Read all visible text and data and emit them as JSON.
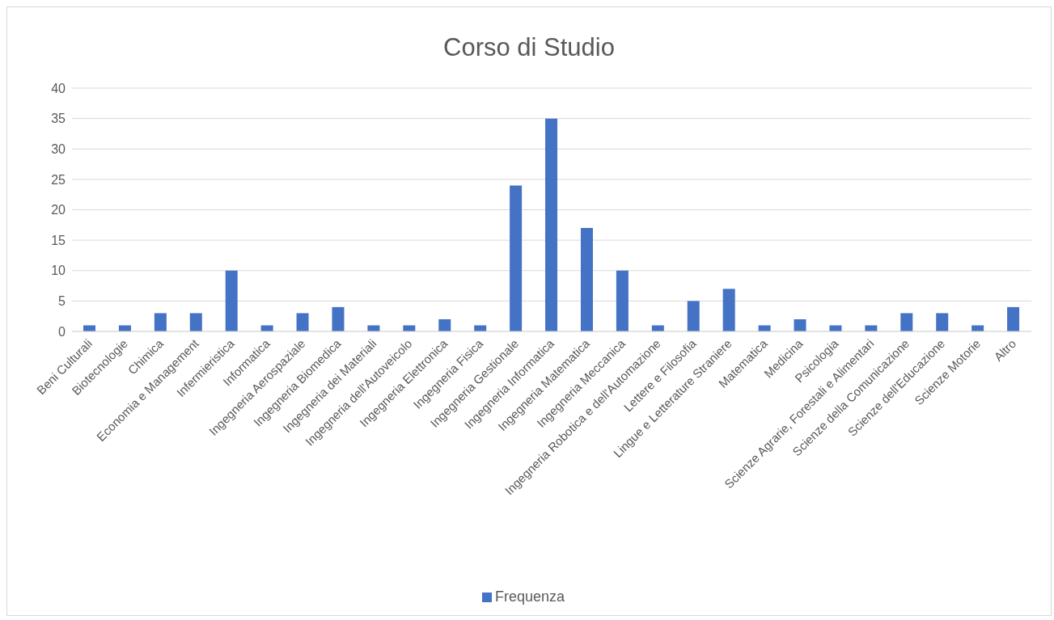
{
  "chart_data": {
    "type": "bar",
    "title": "Corso di Studio",
    "categories": [
      "Beni Culturali",
      "Biotecnologie",
      "Chimica",
      "Economia e Management",
      "Infermieristica",
      "Informatica",
      "Ingegneria Aerospaziale",
      "Ingegneria Biomedica",
      "Ingegneria dei Materiali",
      "Ingegneria dell'Autoveicolo",
      "Ingegneria Elettronica",
      "Ingegneria Fisica",
      "Ingegneria Gestionale",
      "Ingegneria Informatica",
      "Ingegneria Matematica",
      "Ingegneria Meccanica",
      "Ingegneria Robotica e dell'Automazione",
      "Lettere e Filosofia",
      "Lingue e Letterature Straniere",
      "Matematica",
      "Medicina",
      "Psicologia",
      "Scienze Agrarie, Forestali e Alimentari",
      "Scienze della Comunicazione",
      "Scienze dell'Educazione",
      "Scienze Motorie",
      "Altro"
    ],
    "series": [
      {
        "name": "Frequenza",
        "color": "#4472c4",
        "values": [
          1,
          1,
          3,
          3,
          10,
          1,
          3,
          4,
          1,
          1,
          2,
          1,
          24,
          35,
          17,
          10,
          1,
          5,
          7,
          1,
          2,
          1,
          1,
          3,
          3,
          1,
          4
        ]
      }
    ],
    "ylim": [
      0,
      40
    ],
    "yticks": [
      0,
      5,
      10,
      15,
      20,
      25,
      30,
      35,
      40
    ],
    "grid": "y",
    "legend": "bottom"
  }
}
